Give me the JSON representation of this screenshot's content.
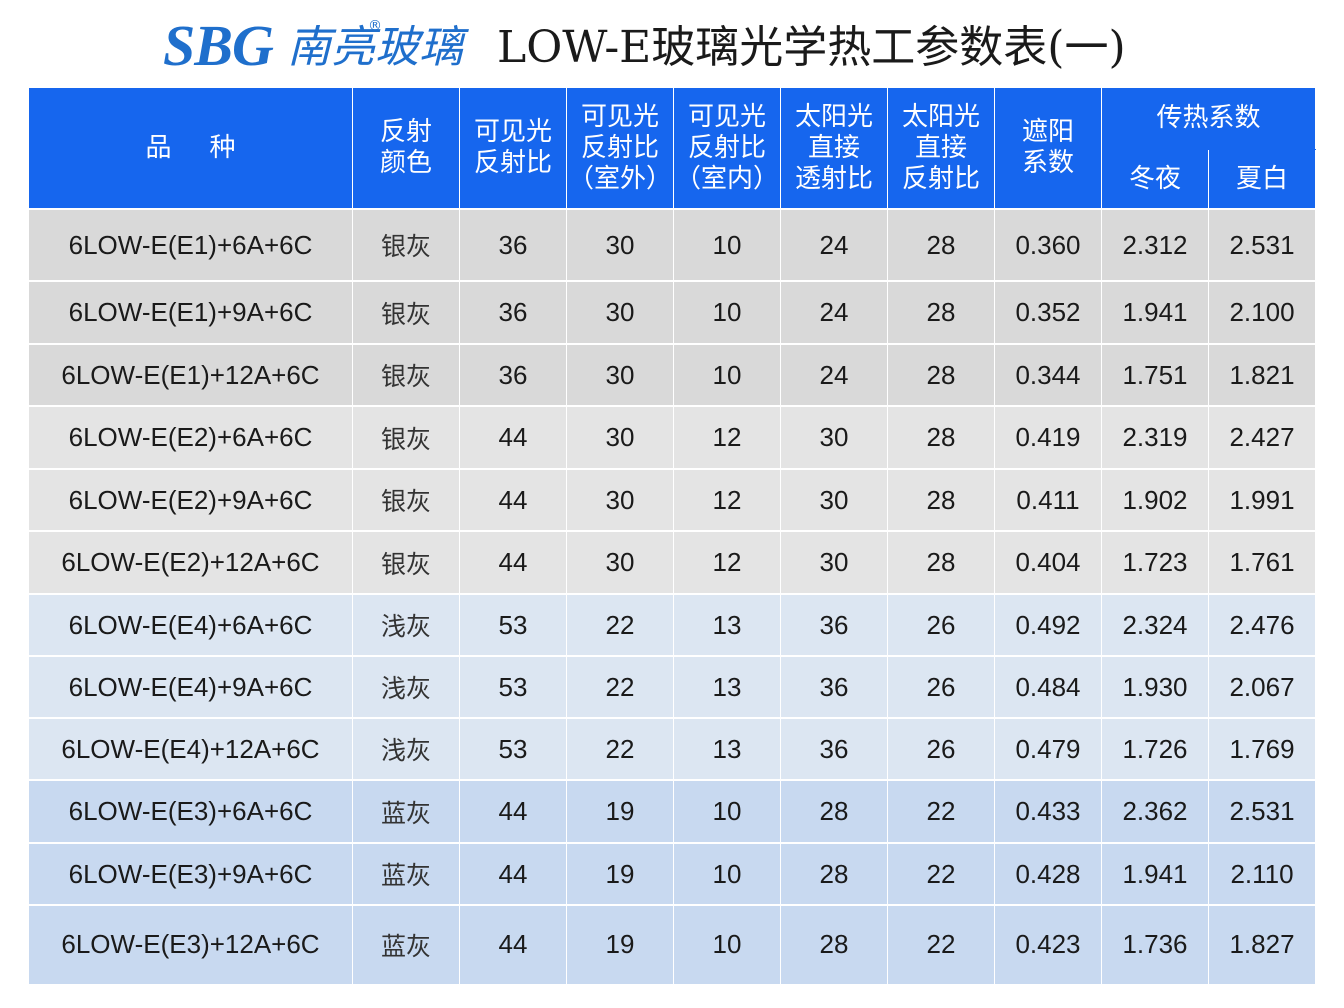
{
  "brand": {
    "logo_text": "SBG",
    "logo_name": "南亮玻璃",
    "registered_mark": "®"
  },
  "title": "LOW-E玻璃光学热工参数表(一)",
  "colors": {
    "header_bg": "#1666ee",
    "logo": "#1f6fcc",
    "silver_row_a": "#d9d9d9",
    "silver_row_b": "#e4e4e4",
    "light_blue_row": "#dce6f2",
    "blue_row": "#c8d9f0"
  },
  "header": {
    "variety": "品种",
    "reflect_color": [
      "反射",
      "颜色"
    ],
    "visible_reflect": [
      "可见光",
      "反射比"
    ],
    "visible_reflect_out": [
      "可见光",
      "反射比",
      "（室外）"
    ],
    "visible_reflect_in": [
      "可见光",
      "反射比",
      "（室内）"
    ],
    "solar_trans": [
      "太阳光",
      "直接",
      "透射比"
    ],
    "solar_reflect": [
      "太阳光",
      "直接",
      "反射比"
    ],
    "shading": [
      "遮阳",
      "系数"
    ],
    "u_value": "传热系数",
    "winter_night": "冬夜",
    "summer_day": "夏白"
  },
  "rows": [
    {
      "group": "g-silver-a",
      "cells": [
        "6LOW-E(E1)+6A+6C",
        "银灰",
        "36",
        "30",
        "10",
        "24",
        "28",
        "0.360",
        "2.312",
        "2.531"
      ]
    },
    {
      "group": "g-silver-a",
      "cells": [
        "6LOW-E(E1)+9A+6C",
        "银灰",
        "36",
        "30",
        "10",
        "24",
        "28",
        "0.352",
        "1.941",
        "2.100"
      ]
    },
    {
      "group": "g-silver-a",
      "cells": [
        "6LOW-E(E1)+12A+6C",
        "银灰",
        "36",
        "30",
        "10",
        "24",
        "28",
        "0.344",
        "1.751",
        "1.821"
      ]
    },
    {
      "group": "g-silver-b",
      "cells": [
        "6LOW-E(E2)+6A+6C",
        "银灰",
        "44",
        "30",
        "12",
        "30",
        "28",
        "0.419",
        "2.319",
        "2.427"
      ]
    },
    {
      "group": "g-silver-b",
      "cells": [
        "6LOW-E(E2)+9A+6C",
        "银灰",
        "44",
        "30",
        "12",
        "30",
        "28",
        "0.411",
        "1.902",
        "1.991"
      ]
    },
    {
      "group": "g-silver-b",
      "cells": [
        "6LOW-E(E2)+12A+6C",
        "银灰",
        "44",
        "30",
        "12",
        "30",
        "28",
        "0.404",
        "1.723",
        "1.761"
      ]
    },
    {
      "group": "g-light",
      "cells": [
        "6LOW-E(E4)+6A+6C",
        "浅灰",
        "53",
        "22",
        "13",
        "36",
        "26",
        "0.492",
        "2.324",
        "2.476"
      ]
    },
    {
      "group": "g-light",
      "cells": [
        "6LOW-E(E4)+9A+6C",
        "浅灰",
        "53",
        "22",
        "13",
        "36",
        "26",
        "0.484",
        "1.930",
        "2.067"
      ]
    },
    {
      "group": "g-light",
      "cells": [
        "6LOW-E(E4)+12A+6C",
        "浅灰",
        "53",
        "22",
        "13",
        "36",
        "26",
        "0.479",
        "1.726",
        "1.769"
      ]
    },
    {
      "group": "g-blue",
      "cells": [
        "6LOW-E(E3)+6A+6C",
        "蓝灰",
        "44",
        "19",
        "10",
        "28",
        "22",
        "0.433",
        "2.362",
        "2.531"
      ]
    },
    {
      "group": "g-blue",
      "cells": [
        "6LOW-E(E3)+9A+6C",
        "蓝灰",
        "44",
        "19",
        "10",
        "28",
        "22",
        "0.428",
        "1.941",
        "2.110"
      ]
    },
    {
      "group": "g-blue",
      "cells": [
        "6LOW-E(E3)+12A+6C",
        "蓝灰",
        "44",
        "19",
        "10",
        "28",
        "22",
        "0.423",
        "1.736",
        "1.827"
      ]
    }
  ]
}
